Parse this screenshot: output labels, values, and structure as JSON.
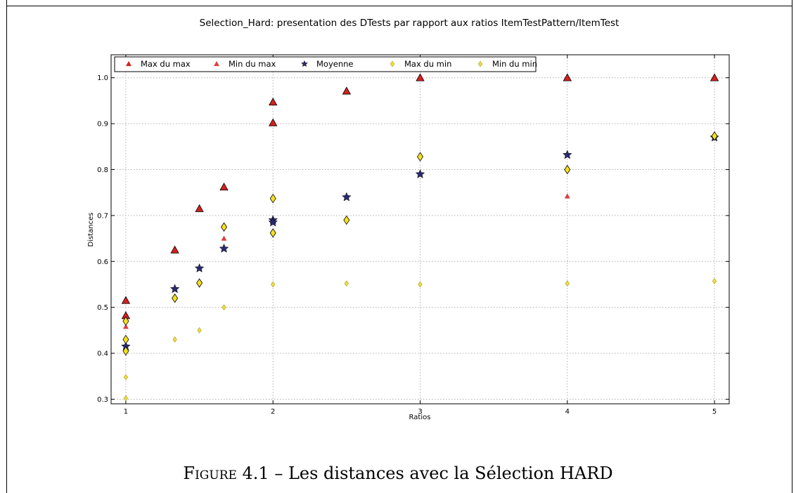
{
  "chart_data": {
    "type": "scatter",
    "title": "Selection_Hard: presentation des DTests par rapport aux ratios ItemTestPattern/ItemTest",
    "xlabel": "Ratios",
    "ylabel": "Distances",
    "xlim": [
      0.9,
      5.1
    ],
    "ylim": [
      0.29,
      1.05
    ],
    "xticks": [
      1,
      2,
      3,
      4,
      5
    ],
    "yticks": [
      0.3,
      0.4,
      0.5,
      0.6,
      0.7,
      0.8,
      0.9,
      1.0
    ],
    "grid": true,
    "legend_position": "top",
    "series": [
      {
        "name": "Max du max",
        "marker": "triangle",
        "size": "large",
        "color": "#d42020",
        "points": [
          [
            1,
            0.515
          ],
          [
            1,
            0.482
          ],
          [
            1.333,
            0.625
          ],
          [
            1.5,
            0.715
          ],
          [
            1.667,
            0.762
          ],
          [
            2,
            0.947
          ],
          [
            2,
            0.902
          ],
          [
            2.5,
            0.971
          ],
          [
            3,
            1.0
          ],
          [
            4,
            1.0
          ],
          [
            5,
            1.0
          ]
        ]
      },
      {
        "name": "Min du max",
        "marker": "triangle",
        "size": "small",
        "color": "#d94040",
        "points": [
          [
            1,
            0.458
          ],
          [
            1.667,
            0.65
          ],
          [
            4,
            0.742
          ]
        ]
      },
      {
        "name": "Moyenne",
        "marker": "star",
        "size": "large",
        "color": "#2a2a6e",
        "points": [
          [
            1,
            0.415
          ],
          [
            1.333,
            0.54
          ],
          [
            1.5,
            0.585
          ],
          [
            1.667,
            0.628
          ],
          [
            2,
            0.69
          ],
          [
            2,
            0.685
          ],
          [
            2.5,
            0.74
          ],
          [
            3,
            0.79
          ],
          [
            4,
            0.832
          ],
          [
            5,
            0.87
          ]
        ]
      },
      {
        "name": "Max du min",
        "marker": "diamond",
        "size": "large",
        "color": "#f5e020",
        "points": [
          [
            1,
            0.47
          ],
          [
            1,
            0.43
          ],
          [
            1,
            0.405
          ],
          [
            1.333,
            0.52
          ],
          [
            1.5,
            0.553
          ],
          [
            1.667,
            0.675
          ],
          [
            2,
            0.737
          ],
          [
            2,
            0.662
          ],
          [
            2.5,
            0.69
          ],
          [
            3,
            0.828
          ],
          [
            4,
            0.8
          ],
          [
            5,
            0.873
          ]
        ]
      },
      {
        "name": "Min du min",
        "marker": "diamond",
        "size": "small",
        "color": "#eedc3a",
        "points": [
          [
            1,
            0.348
          ],
          [
            1,
            0.302
          ],
          [
            1.333,
            0.43
          ],
          [
            1.5,
            0.45
          ],
          [
            1.667,
            0.5
          ],
          [
            2,
            0.55
          ],
          [
            2.5,
            0.552
          ],
          [
            3,
            0.55
          ],
          [
            4,
            0.552
          ],
          [
            5,
            0.557
          ]
        ]
      }
    ]
  },
  "caption": {
    "figure_label": "Figure 4.1",
    "text": "– Les distances avec la Sélection HARD"
  }
}
